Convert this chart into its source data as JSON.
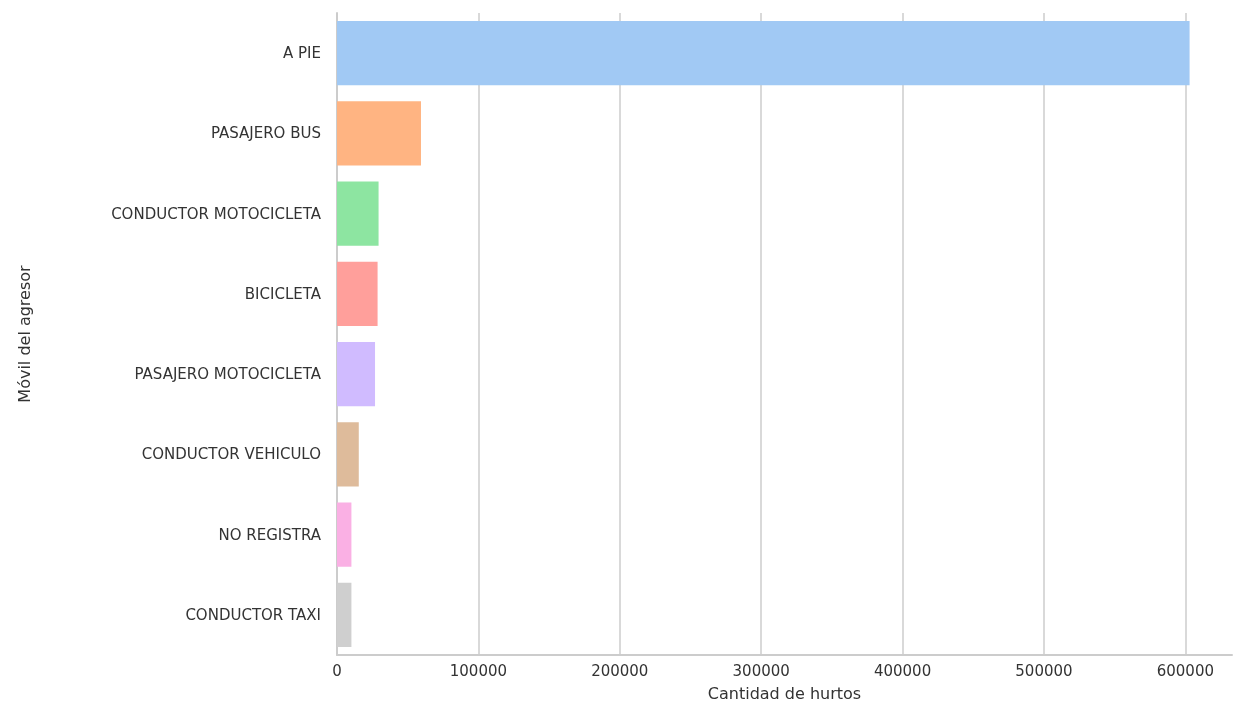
{
  "chart_data": {
    "type": "bar",
    "orientation": "horizontal",
    "xlabel": "Cantidad de hurtos",
    "ylabel": "Móvil del agresor",
    "categories": [
      "A PIE",
      "PASAJERO BUS",
      "CONDUCTOR MOTOCICLETA",
      "BICICLETA",
      "PASAJERO MOTOCICLETA",
      "CONDUCTOR VEHICULO",
      "NO REGISTRA",
      "CONDUCTOR TAXI"
    ],
    "values": [
      603000,
      59400,
      29400,
      28700,
      26900,
      15400,
      10200,
      10200
    ],
    "colors": [
      "#a1c9f4",
      "#ffb482",
      "#8de5a1",
      "#ff9f9b",
      "#d0bbff",
      "#debb9b",
      "#fab0e4",
      "#cfcfcf"
    ],
    "xlim": [
      0,
      633000
    ],
    "xticks": [
      0,
      100000,
      200000,
      300000,
      400000,
      500000,
      600000
    ],
    "grid": "x"
  }
}
